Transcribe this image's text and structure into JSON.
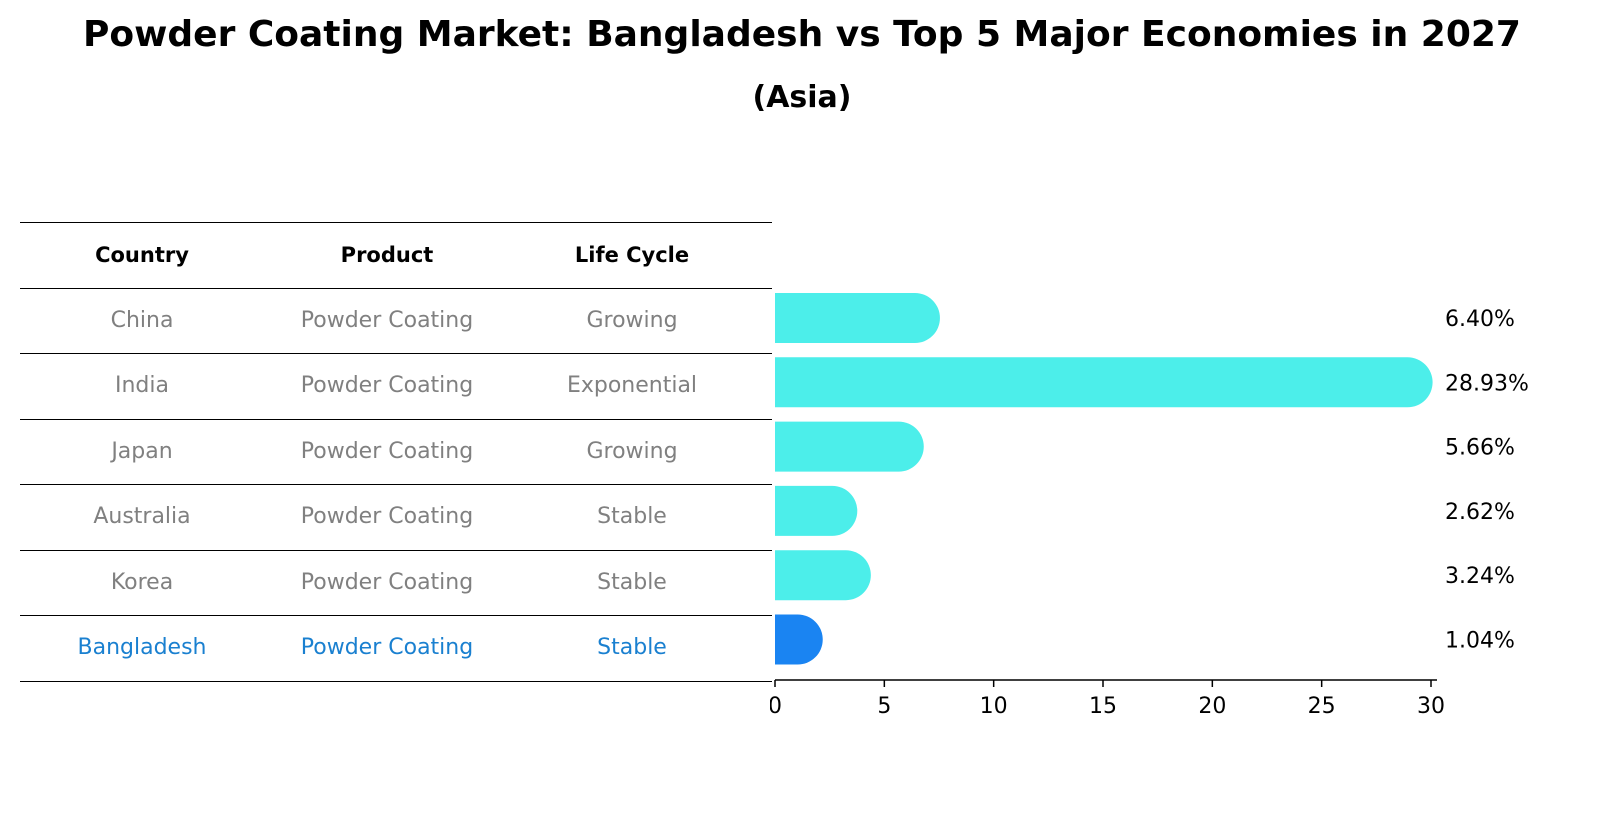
{
  "title": "Powder Coating Market: Bangladesh vs Top 5 Major Economies in 2027",
  "subtitle": "(Asia)",
  "colors": {
    "bar": "#4ceeea",
    "highlight_bar": "#1a84f2",
    "highlight_text": "#1a80d0",
    "muted_text": "#808080"
  },
  "table": {
    "headers": [
      "Country",
      "Product",
      "Life Cycle"
    ],
    "rows": [
      [
        "China",
        "Powder Coating",
        "Growing"
      ],
      [
        "India",
        "Powder Coating",
        "Exponential"
      ],
      [
        "Japan",
        "Powder Coating",
        "Growing"
      ],
      [
        "Australia",
        "Powder Coating",
        "Stable"
      ],
      [
        "Korea",
        "Powder Coating",
        "Stable"
      ],
      [
        "Bangladesh",
        "Powder Coating",
        "Stable"
      ]
    ],
    "highlight_row": 5
  },
  "chart_data": {
    "type": "bar",
    "orientation": "horizontal",
    "categories": [
      "China",
      "India",
      "Japan",
      "Australia",
      "Korea",
      "Bangladesh"
    ],
    "values": [
      6.4,
      28.93,
      5.66,
      2.62,
      3.24,
      1.04
    ],
    "value_labels": [
      "6.40%",
      "28.93%",
      "5.66%",
      "2.62%",
      "3.24%",
      "1.04%"
    ],
    "xlim": [
      0,
      30
    ],
    "xticks": [
      0,
      5,
      10,
      15,
      20,
      25,
      30
    ],
    "xlabel": "",
    "ylabel": "",
    "grid": false,
    "highlight_index": 5
  }
}
